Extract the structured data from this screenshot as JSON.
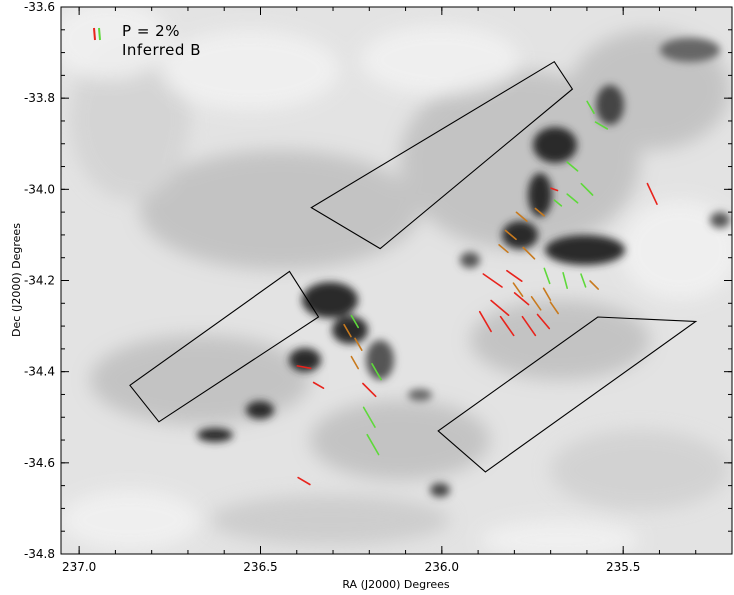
{
  "chart_data": {
    "type": "scatter",
    "xlabel": "RA (J2000) Degrees",
    "ylabel": "Dec (J2000) Degrees",
    "xlim": [
      237.05,
      235.2
    ],
    "ylim": [
      -34.8,
      -33.6
    ],
    "x_ticks": [
      237.0,
      236.5,
      236.0,
      235.5
    ],
    "x_tick_labels": [
      "237.0",
      "236.5",
      "236.0",
      "235.5"
    ],
    "y_ticks": [
      -33.6,
      -33.8,
      -34.0,
      -34.2,
      -34.4,
      -34.6,
      -34.8
    ],
    "y_tick_labels": [
      "-33.6",
      "-33.8",
      "-34.0",
      "-34.2",
      "-34.4",
      "-34.6",
      "-34.8"
    ],
    "background": "greyscale dust emission map (inverted: dark = dense)",
    "legend": {
      "position": "top-left",
      "entries": [
        "P = 2%",
        "Inferred B"
      ],
      "colors": [
        "#e8231c",
        "#5ed93a"
      ]
    },
    "vector_colors": {
      "polarization": "#e8231c",
      "inferred_b": "#5ed93a",
      "mixed": "#c87a1e"
    },
    "vectors": [
      {
        "ra": 236.38,
        "dec": -34.39,
        "angle": -10,
        "len": 0.03,
        "color": "red"
      },
      {
        "ra": 236.34,
        "dec": -34.43,
        "angle": -30,
        "len": 0.025,
        "color": "red"
      },
      {
        "ra": 236.2,
        "dec": -34.44,
        "angle": -45,
        "len": 0.04,
        "color": "red"
      },
      {
        "ra": 236.26,
        "dec": -34.31,
        "angle": -60,
        "len": 0.03,
        "color": "orange"
      },
      {
        "ra": 236.23,
        "dec": -34.34,
        "angle": -60,
        "len": 0.03,
        "color": "orange"
      },
      {
        "ra": 236.24,
        "dec": -34.38,
        "angle": -60,
        "len": 0.03,
        "color": "orange"
      },
      {
        "ra": 236.24,
        "dec": -34.29,
        "angle": -60,
        "len": 0.03,
        "color": "green"
      },
      {
        "ra": 236.18,
        "dec": -34.4,
        "angle": -60,
        "len": 0.04,
        "color": "green"
      },
      {
        "ra": 236.2,
        "dec": -34.5,
        "angle": -60,
        "len": 0.05,
        "color": "green"
      },
      {
        "ra": 236.19,
        "dec": -34.56,
        "angle": -60,
        "len": 0.05,
        "color": "green"
      },
      {
        "ra": 236.38,
        "dec": -34.64,
        "angle": -30,
        "len": 0.03,
        "color": "red"
      },
      {
        "ra": 235.86,
        "dec": -34.2,
        "angle": -35,
        "len": 0.05,
        "color": "red"
      },
      {
        "ra": 235.8,
        "dec": -34.19,
        "angle": -35,
        "len": 0.04,
        "color": "red"
      },
      {
        "ra": 235.84,
        "dec": -34.26,
        "angle": -40,
        "len": 0.05,
        "color": "red"
      },
      {
        "ra": 235.78,
        "dec": -34.24,
        "angle": -40,
        "len": 0.04,
        "color": "red"
      },
      {
        "ra": 235.88,
        "dec": -34.29,
        "angle": -60,
        "len": 0.05,
        "color": "red"
      },
      {
        "ra": 235.82,
        "dec": -34.3,
        "angle": -55,
        "len": 0.05,
        "color": "red"
      },
      {
        "ra": 235.76,
        "dec": -34.3,
        "angle": -55,
        "len": 0.05,
        "color": "red"
      },
      {
        "ra": 235.72,
        "dec": -34.29,
        "angle": -50,
        "len": 0.04,
        "color": "red"
      },
      {
        "ra": 235.78,
        "dec": -34.06,
        "angle": -40,
        "len": 0.03,
        "color": "orange"
      },
      {
        "ra": 235.81,
        "dec": -34.1,
        "angle": -40,
        "len": 0.03,
        "color": "orange"
      },
      {
        "ra": 235.76,
        "dec": -34.14,
        "angle": -45,
        "len": 0.035,
        "color": "orange"
      },
      {
        "ra": 235.73,
        "dec": -34.05,
        "angle": -40,
        "len": 0.025,
        "color": "orange"
      },
      {
        "ra": 235.71,
        "dec": -34.23,
        "angle": -60,
        "len": 0.03,
        "color": "orange"
      },
      {
        "ra": 235.79,
        "dec": -34.22,
        "angle": -55,
        "len": 0.035,
        "color": "orange"
      },
      {
        "ra": 235.74,
        "dec": -34.25,
        "angle": -55,
        "len": 0.035,
        "color": "orange"
      },
      {
        "ra": 235.69,
        "dec": -34.26,
        "angle": -55,
        "len": 0.03,
        "color": "orange"
      },
      {
        "ra": 235.58,
        "dec": -34.21,
        "angle": -45,
        "len": 0.025,
        "color": "orange"
      },
      {
        "ra": 235.71,
        "dec": -34.19,
        "angle": -70,
        "len": 0.035,
        "color": "green"
      },
      {
        "ra": 235.66,
        "dec": -34.2,
        "angle": -75,
        "len": 0.035,
        "color": "green"
      },
      {
        "ra": 235.61,
        "dec": -34.2,
        "angle": -70,
        "len": 0.03,
        "color": "green"
      },
      {
        "ra": 235.64,
        "dec": -33.95,
        "angle": -40,
        "len": 0.03,
        "color": "green"
      },
      {
        "ra": 235.6,
        "dec": -34.0,
        "angle": -45,
        "len": 0.035,
        "color": "green"
      },
      {
        "ra": 235.64,
        "dec": -34.02,
        "angle": -40,
        "len": 0.03,
        "color": "green"
      },
      {
        "ra": 235.56,
        "dec": -33.86,
        "angle": -30,
        "len": 0.03,
        "color": "green"
      },
      {
        "ra": 235.59,
        "dec": -33.82,
        "angle": -60,
        "len": 0.03,
        "color": "green"
      },
      {
        "ra": 235.68,
        "dec": -34.03,
        "angle": -40,
        "len": 0.02,
        "color": "green"
      },
      {
        "ra": 235.42,
        "dec": -34.01,
        "angle": -65,
        "len": 0.05,
        "color": "red"
      },
      {
        "ra": 235.69,
        "dec": -34.0,
        "angle": -20,
        "len": 0.015,
        "color": "red"
      },
      {
        "ra": 235.83,
        "dec": -34.13,
        "angle": -40,
        "len": 0.025,
        "color": "orange"
      }
    ],
    "boxes": [
      [
        [
          236.17,
          -34.13
        ],
        [
          236.36,
          -34.04
        ],
        [
          235.69,
          -33.72
        ],
        [
          235.64,
          -33.78
        ]
      ],
      [
        [
          236.86,
          -34.43
        ],
        [
          236.78,
          -34.51
        ],
        [
          236.34,
          -34.28
        ],
        [
          236.42,
          -34.18
        ]
      ],
      [
        [
          236.01,
          -34.53
        ],
        [
          235.88,
          -34.62
        ],
        [
          235.3,
          -34.29
        ],
        [
          235.57,
          -34.28
        ]
      ]
    ]
  }
}
